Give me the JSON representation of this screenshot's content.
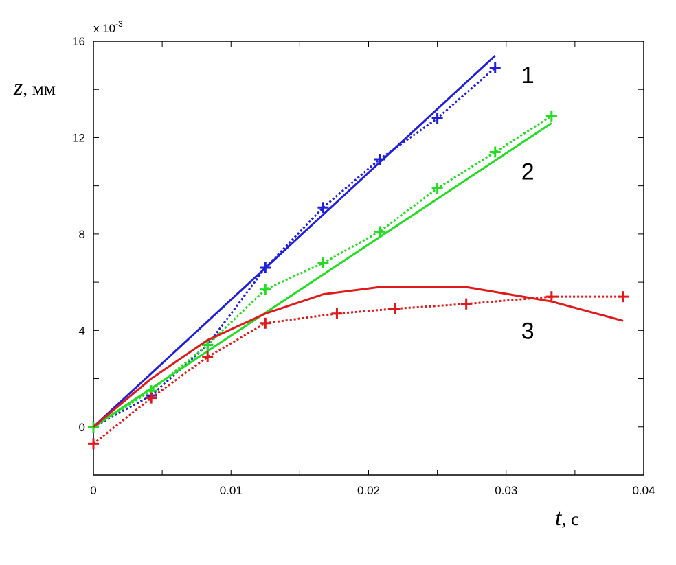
{
  "chart_data": {
    "type": "line",
    "x_axis": {
      "label_var": "t",
      "label_unit": ", c",
      "range": [
        0,
        0.04
      ],
      "ticks": [
        0,
        0.01,
        0.02,
        0.03,
        0.04
      ],
      "tick_labels": [
        "0",
        "0.01",
        "0.02",
        "0.03",
        "0.04"
      ]
    },
    "y_axis": {
      "label_var": "z",
      "label_unit": ", мм",
      "range": [
        -0.002,
        0.016
      ],
      "ticks": [
        0,
        0.004,
        0.008,
        0.012,
        0.016
      ],
      "tick_labels": [
        "0",
        "4",
        "8",
        "12",
        "16"
      ],
      "multiplier": "x 10",
      "multiplier_exp": "-3"
    },
    "grid": false,
    "series": [
      {
        "group": "1",
        "style": "solid",
        "color": "#1f1fdd",
        "x": [
          0,
          0.0292
        ],
        "y": [
          0,
          0.0154
        ]
      },
      {
        "group": "1",
        "style": "dotted-markers",
        "color": "#1f1fdd",
        "x": [
          0,
          0.0042,
          0.0083,
          0.0125,
          0.0167,
          0.0208,
          0.025,
          0.0292
        ],
        "y": [
          0,
          0.0013,
          0.0034,
          0.0066,
          0.0091,
          0.0111,
          0.0128,
          0.0149
        ]
      },
      {
        "group": "2",
        "style": "solid",
        "color": "#22dd22",
        "x": [
          0,
          0.0333
        ],
        "y": [
          0,
          0.0126
        ]
      },
      {
        "group": "2",
        "style": "dotted-markers",
        "color": "#22dd22",
        "x": [
          0,
          0.0042,
          0.0083,
          0.0125,
          0.0167,
          0.0208,
          0.025,
          0.0292,
          0.0333
        ],
        "y": [
          0,
          0.0015,
          0.0034,
          0.0057,
          0.0068,
          0.0081,
          0.0099,
          0.0114,
          0.0129
        ]
      },
      {
        "group": "3",
        "style": "solid",
        "color": "#e01a1a",
        "x": [
          0,
          0.0042,
          0.0083,
          0.0125,
          0.0167,
          0.0208,
          0.025,
          0.0271,
          0.0333,
          0.0385
        ],
        "y": [
          0,
          0.002,
          0.0036,
          0.0047,
          0.0055,
          0.0058,
          0.0058,
          0.0058,
          0.0052,
          0.0044
        ]
      },
      {
        "group": "3",
        "style": "dotted-markers",
        "color": "#e01a1a",
        "x": [
          0,
          0.0042,
          0.0083,
          0.0125,
          0.0177,
          0.0219,
          0.0271,
          0.0333,
          0.0385
        ],
        "y": [
          -0.0007,
          0.0012,
          0.0029,
          0.0043,
          0.0047,
          0.0049,
          0.0051,
          0.0054,
          0.0054
        ]
      }
    ],
    "annotations": [
      {
        "text": "1",
        "x": 0.0311,
        "y": 0.0146
      },
      {
        "text": "2",
        "x": 0.0311,
        "y": 0.0106
      },
      {
        "text": "3",
        "x": 0.0311,
        "y": 0.004
      }
    ]
  }
}
